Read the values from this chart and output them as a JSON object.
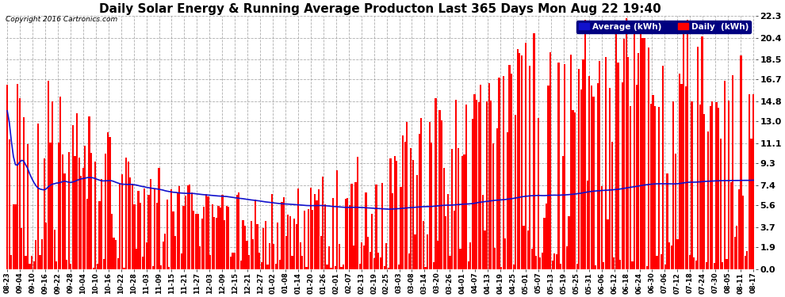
{
  "title": "Daily Solar Energy & Running Average Producton Last 365 Days Mon Aug 22 19:40",
  "copyright": "Copyright 2016 Cartronics.com",
  "ylim": [
    0.0,
    22.3
  ],
  "yticks": [
    0.0,
    1.9,
    3.7,
    5.6,
    7.4,
    9.3,
    11.1,
    13.0,
    14.8,
    16.7,
    18.5,
    20.4,
    22.3
  ],
  "bar_color": "#FF0000",
  "avg_color": "#1111CC",
  "background_color": "#FFFFFF",
  "plot_bg_color": "#FFFFFF",
  "grid_color": "#999999",
  "title_fontsize": 11,
  "legend_avg_label": "Average (kWh)",
  "legend_daily_label": "Daily  (kWh)",
  "n_days": 365,
  "xtick_labels": [
    "08-23",
    "09-04",
    "09-10",
    "09-16",
    "09-22",
    "09-28",
    "10-04",
    "10-10",
    "10-16",
    "10-22",
    "10-28",
    "11-03",
    "11-09",
    "11-15",
    "11-21",
    "11-27",
    "12-03",
    "12-09",
    "12-15",
    "12-21",
    "12-27",
    "01-02",
    "01-08",
    "01-14",
    "01-20",
    "01-26",
    "02-01",
    "02-07",
    "02-13",
    "02-19",
    "02-25",
    "03-03",
    "03-08",
    "03-14",
    "03-20",
    "03-26",
    "04-01",
    "04-07",
    "04-13",
    "04-19",
    "04-25",
    "05-01",
    "05-07",
    "05-13",
    "05-19",
    "05-25",
    "05-31",
    "06-06",
    "06-12",
    "06-18",
    "06-24",
    "06-30",
    "07-06",
    "07-12",
    "07-18",
    "07-24",
    "07-30",
    "08-05",
    "08-11",
    "08-17"
  ]
}
